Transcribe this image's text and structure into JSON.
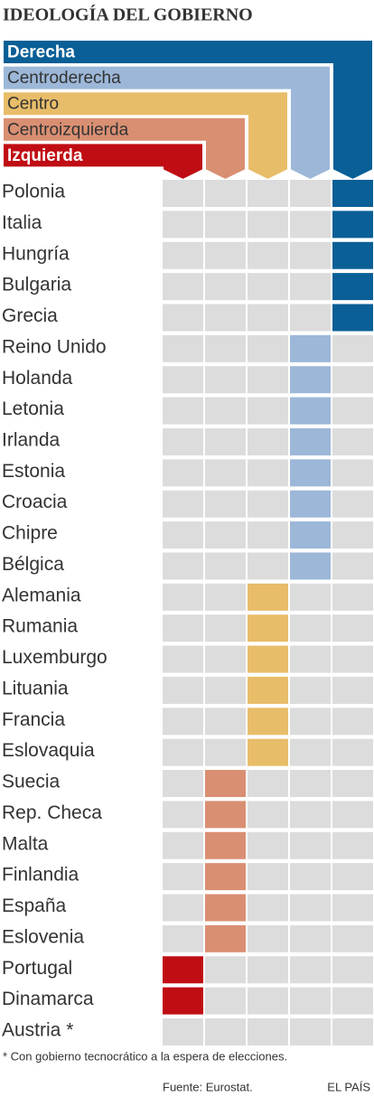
{
  "title": "IDEOLOGÍA DEL GOBIERNO",
  "ideologies": [
    {
      "name": "Izquierda",
      "color": "#c00d14",
      "text_color": "#ffffff"
    },
    {
      "name": "Centroizquierda",
      "color": "#d98f72",
      "text_color": "#333333"
    },
    {
      "name": "Centro",
      "color": "#e8bd69",
      "text_color": "#333333"
    },
    {
      "name": "Centroderecha",
      "color": "#9cb7d8",
      "text_color": "#333333"
    },
    {
      "name": "Derecha",
      "color": "#0a5f96",
      "text_color": "#ffffff"
    }
  ],
  "rows": [
    {
      "country": "Polonia",
      "ideology": 4
    },
    {
      "country": "Italia",
      "ideology": 4
    },
    {
      "country": "Hungría",
      "ideology": 4
    },
    {
      "country": "Bulgaria",
      "ideology": 4
    },
    {
      "country": "Grecia",
      "ideology": 4
    },
    {
      "country": "Reino Unido",
      "ideology": 3
    },
    {
      "country": "Holanda",
      "ideology": 3
    },
    {
      "country": "Letonia",
      "ideology": 3
    },
    {
      "country": "Irlanda",
      "ideology": 3
    },
    {
      "country": "Estonia",
      "ideology": 3
    },
    {
      "country": "Croacia",
      "ideology": 3
    },
    {
      "country": "Chipre",
      "ideology": 3
    },
    {
      "country": "Bélgica",
      "ideology": 3
    },
    {
      "country": "Alemania",
      "ideology": 2
    },
    {
      "country": "Rumania",
      "ideology": 2
    },
    {
      "country": "Luxemburgo",
      "ideology": 2
    },
    {
      "country": "Lituania",
      "ideology": 2
    },
    {
      "country": "Francia",
      "ideology": 2
    },
    {
      "country": "Eslovaquia",
      "ideology": 2
    },
    {
      "country": "Suecia",
      "ideology": 1
    },
    {
      "country": "Rep. Checa",
      "ideology": 1
    },
    {
      "country": "Malta",
      "ideology": 1
    },
    {
      "country": "Finlandia",
      "ideology": 1
    },
    {
      "country": "España",
      "ideology": 1
    },
    {
      "country": "Eslovenia",
      "ideology": 1
    },
    {
      "country": "Portugal",
      "ideology": 0
    },
    {
      "country": "Dinamarca",
      "ideology": 0
    },
    {
      "country": "Austria *",
      "ideology": null
    }
  ],
  "footnote": "* Con gobierno tecnocrático a la espera de elecciones.",
  "source": "Fuente: Eurostat.",
  "brand": "EL PAÍS"
}
